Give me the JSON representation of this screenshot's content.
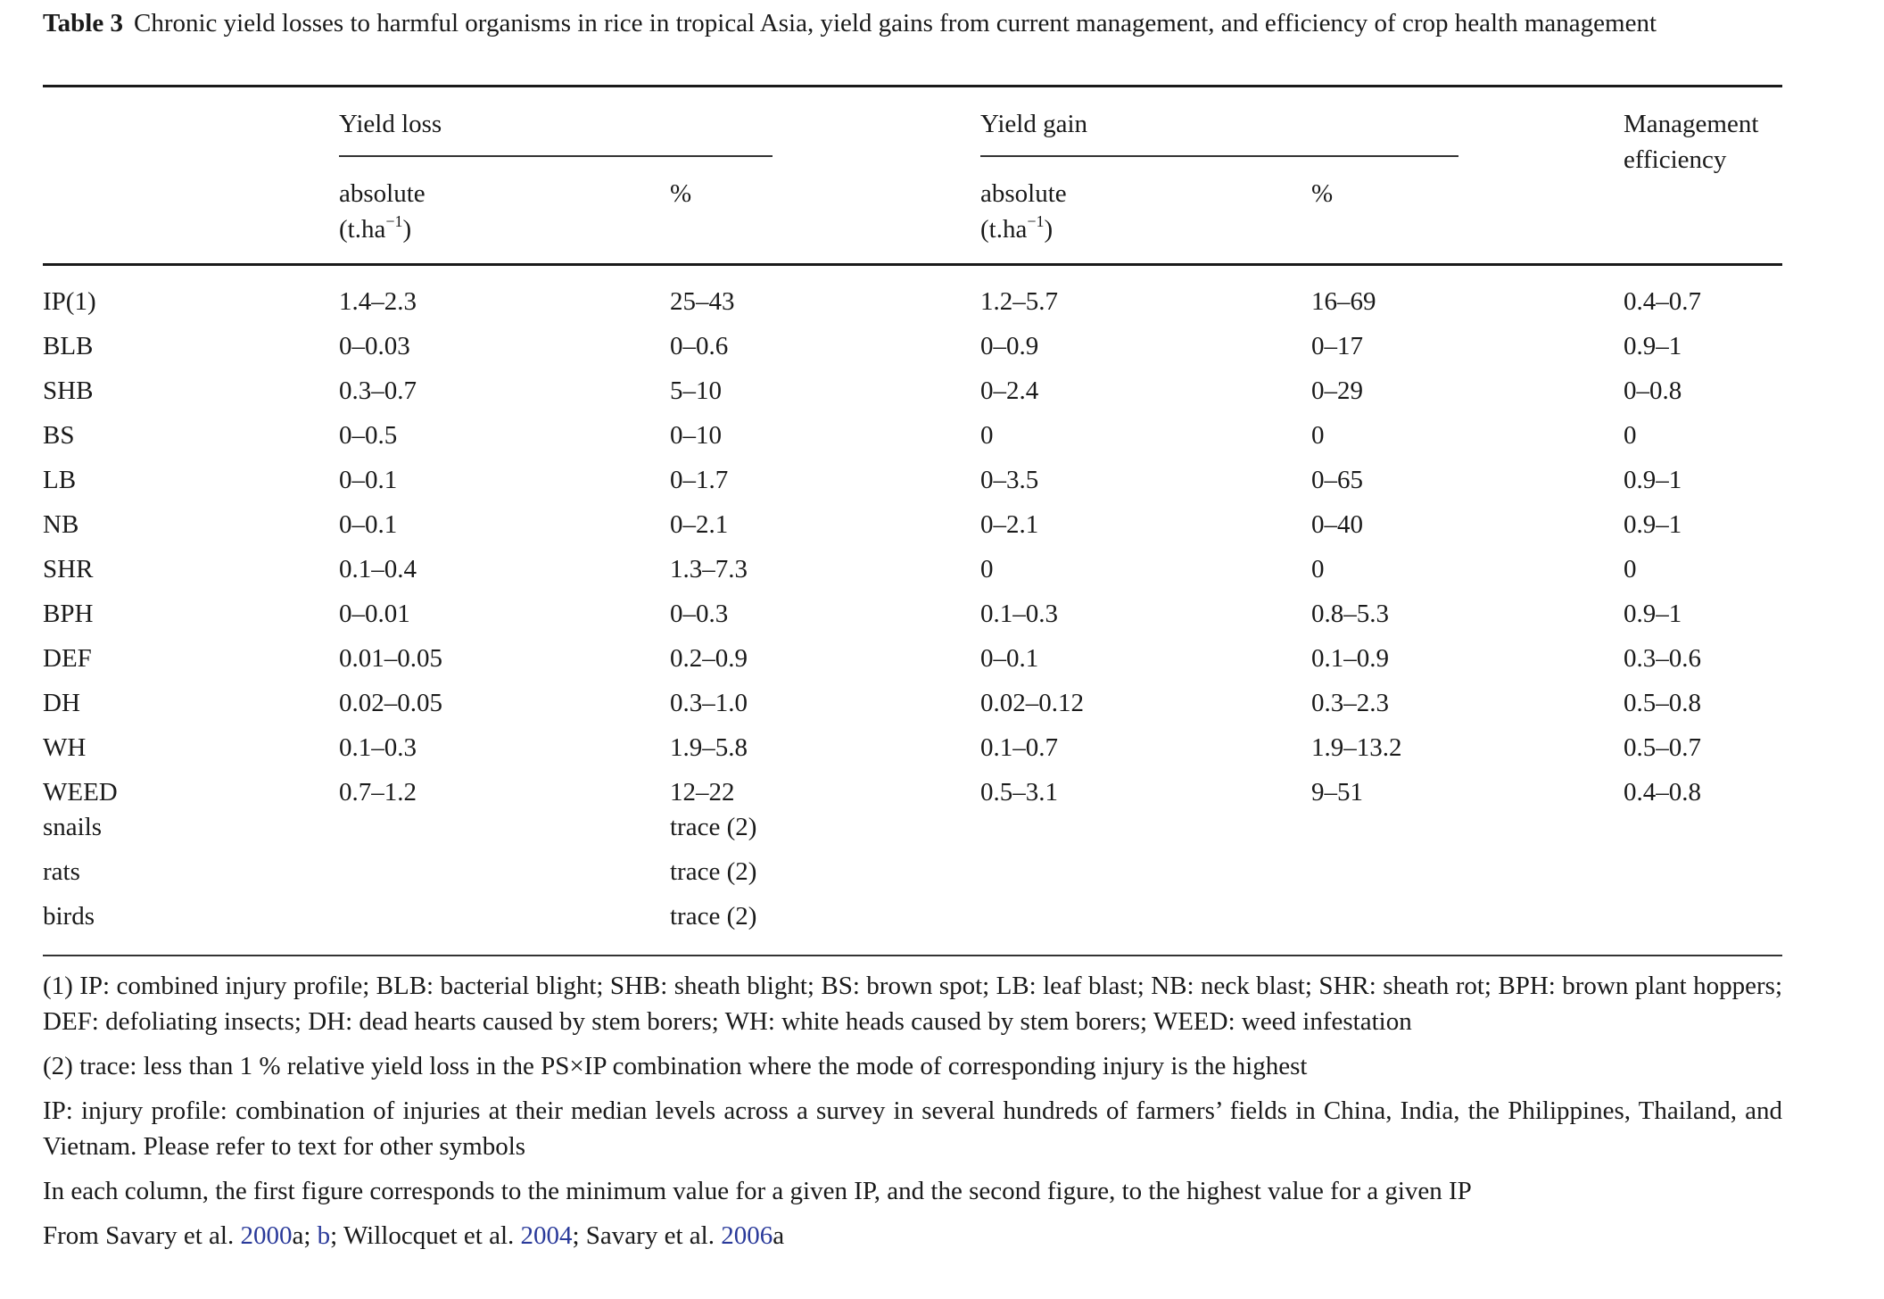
{
  "caption": {
    "label": "Table 3",
    "text": "Chronic yield losses to harmful organisms in rice in tropical Asia, yield gains from current management, and efficiency of crop health management"
  },
  "header": {
    "yield_loss": "Yield loss",
    "yield_gain": "Yield gain",
    "management_efficiency_line1": "Management",
    "management_efficiency_line2": "efficiency",
    "absolute": "absolute",
    "unit_prefix": "(t.ha",
    "unit_exp": "−1",
    "unit_suffix": ")",
    "percent": "%"
  },
  "rows": [
    {
      "name": "IP(1)",
      "loss_abs": "1.4–2.3",
      "loss_pct": "25–43",
      "gain_abs": "1.2–5.7",
      "gain_pct": "16–69",
      "eff": "0.4–0.7"
    },
    {
      "name": "BLB",
      "loss_abs": "0–0.03",
      "loss_pct": "0–0.6",
      "gain_abs": "0–0.9",
      "gain_pct": "0–17",
      "eff": "0.9–1"
    },
    {
      "name": "SHB",
      "loss_abs": "0.3–0.7",
      "loss_pct": "5–10",
      "gain_abs": "0–2.4",
      "gain_pct": "0–29",
      "eff": "0–0.8"
    },
    {
      "name": "BS",
      "loss_abs": "0–0.5",
      "loss_pct": "0–10",
      "gain_abs": "0",
      "gain_pct": "0",
      "eff": "0"
    },
    {
      "name": "LB",
      "loss_abs": "0–0.1",
      "loss_pct": "0–1.7",
      "gain_abs": "0–3.5",
      "gain_pct": "0–65",
      "eff": "0.9–1"
    },
    {
      "name": "NB",
      "loss_abs": "0–0.1",
      "loss_pct": "0–2.1",
      "gain_abs": "0–2.1",
      "gain_pct": "0–40",
      "eff": "0.9–1"
    },
    {
      "name": "SHR",
      "loss_abs": "0.1–0.4",
      "loss_pct": "1.3–7.3",
      "gain_abs": "0",
      "gain_pct": "0",
      "eff": "0"
    },
    {
      "name": "BPH",
      "loss_abs": "0–0.01",
      "loss_pct": "0–0.3",
      "gain_abs": "0.1–0.3",
      "gain_pct": "0.8–5.3",
      "eff": "0.9–1"
    },
    {
      "name": "DEF",
      "loss_abs": "0.01–0.05",
      "loss_pct": "0.2–0.9",
      "gain_abs": "0–0.1",
      "gain_pct": "0.1–0.9",
      "eff": "0.3–0.6"
    },
    {
      "name": "DH",
      "loss_abs": "0.02–0.05",
      "loss_pct": "0.3–1.0",
      "gain_abs": "0.02–0.12",
      "gain_pct": "0.3–2.3",
      "eff": "0.5–0.8"
    },
    {
      "name": "WH",
      "loss_abs": "0.1–0.3",
      "loss_pct": "1.9–5.8",
      "gain_abs": "0.1–0.7",
      "gain_pct": "1.9–13.2",
      "eff": "0.5–0.7"
    },
    {
      "name": "WEED",
      "loss_abs": "0.7–1.2",
      "loss_pct": "12–22",
      "gain_abs": "0.5–3.1",
      "gain_pct": "9–51",
      "eff": "0.4–0.8"
    },
    {
      "name": "snails",
      "loss_abs": "",
      "loss_pct": "trace (2)",
      "gain_abs": "",
      "gain_pct": "",
      "eff": ""
    },
    {
      "name": "rats",
      "loss_abs": "",
      "loss_pct": "trace (2)",
      "gain_abs": "",
      "gain_pct": "",
      "eff": ""
    },
    {
      "name": "birds",
      "loss_abs": "",
      "loss_pct": "trace (2)",
      "gain_abs": "",
      "gain_pct": "",
      "eff": ""
    }
  ],
  "notes": {
    "note1": "(1) IP: combined injury profile; BLB: bacterial blight; SHB: sheath blight; BS: brown spot; LB: leaf blast; NB: neck blast; SHR: sheath rot; BPH: brown plant hoppers; DEF: defoliating insects; DH: dead hearts caused by stem borers; WH: white heads caused by stem borers; WEED: weed infestation",
    "note2": "(2) trace: less than 1 % relative yield loss in the PS×IP combination where the mode of corresponding injury is the highest",
    "note3": "IP: injury profile: combination of injuries at their median levels across a survey in several hundreds of farmers’ fields in China, India, the Philippines, Thailand, and Vietnam. Please refer to text for other symbols",
    "note4": "In each column, the first figure corresponds to the minimum value for a given IP, and the second figure, to the highest value for a given IP",
    "source_prefix": "From Savary et al. ",
    "ref1": "2000",
    "ref1_suffix": "a; ",
    "ref2": "b",
    "mid1": "; Willocquet et al. ",
    "ref3": "2004",
    "mid2": "; Savary et al. ",
    "ref4": "2006",
    "ref4_suffix": "a"
  }
}
